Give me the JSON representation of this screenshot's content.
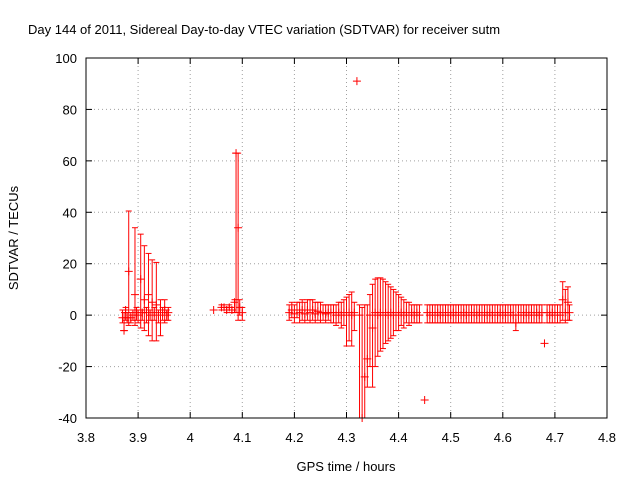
{
  "chart_data": {
    "type": "scatter",
    "title": "Day 144 of 2011, Sidereal Day-to-day VTEC variation (SDTVAR) for receiver sutm",
    "xlabel": "GPS time / hours",
    "ylabel": "SDTVAR / TECUs",
    "xlim": [
      3.8,
      4.8
    ],
    "ylim": [
      -40,
      100
    ],
    "xticks": [
      "3.8",
      "3.9",
      "4",
      "4.1",
      "4.2",
      "4.3",
      "4.4",
      "4.5",
      "4.6",
      "4.7",
      "4.8"
    ],
    "yticks": [
      "-40",
      "-20",
      "0",
      "20",
      "40",
      "60",
      "80",
      "100"
    ],
    "grid": true,
    "marker": "+",
    "series_color": "#ff0000",
    "series": [
      {
        "name": "SDTVAR",
        "points": [
          {
            "x": 3.87,
            "y": -1.0,
            "lo": -3.0,
            "hi": 2.0
          },
          {
            "x": 3.873,
            "y": -6.0,
            "lo": -6.0,
            "hi": 1.0
          },
          {
            "x": 3.876,
            "y": 2.0,
            "lo": -2.0,
            "hi": 3.0
          },
          {
            "x": 3.879,
            "y": -1.0,
            "lo": -3.0,
            "hi": 1.0
          },
          {
            "x": 3.882,
            "y": 17.0,
            "lo": -4.0,
            "hi": 40.5
          },
          {
            "x": 3.886,
            "y": -1.0,
            "lo": -3.0,
            "hi": 1.0
          },
          {
            "x": 3.89,
            "y": 0.0,
            "lo": -2.0,
            "hi": 2.0
          },
          {
            "x": 3.894,
            "y": 8.0,
            "lo": -4.0,
            "hi": 34.0
          },
          {
            "x": 3.897,
            "y": 1.0,
            "lo": -2.0,
            "hi": 3.0
          },
          {
            "x": 3.9,
            "y": 0.0,
            "lo": -3.0,
            "hi": 2.0
          },
          {
            "x": 3.905,
            "y": 14.0,
            "lo": -5.0,
            "hi": 31.5
          },
          {
            "x": 3.908,
            "y": 1.0,
            "lo": -2.0,
            "hi": 2.0
          },
          {
            "x": 3.912,
            "y": 6.0,
            "lo": -6.0,
            "hi": 27.0
          },
          {
            "x": 3.916,
            "y": 1.0,
            "lo": -3.0,
            "hi": 3.0
          },
          {
            "x": 3.92,
            "y": 8.0,
            "lo": -8.0,
            "hi": 24.0
          },
          {
            "x": 3.923,
            "y": 0.0,
            "lo": -2.0,
            "hi": 2.0
          },
          {
            "x": 3.927,
            "y": 5.0,
            "lo": -10.0,
            "hi": 21.5
          },
          {
            "x": 3.931,
            "y": 1.0,
            "lo": -2.0,
            "hi": 3.0
          },
          {
            "x": 3.935,
            "y": 4.0,
            "lo": -10.0,
            "hi": 20.5
          },
          {
            "x": 3.939,
            "y": 0.0,
            "lo": -3.0,
            "hi": 2.0
          },
          {
            "x": 3.943,
            "y": 2.0,
            "lo": -8.0,
            "hi": 6.0
          },
          {
            "x": 3.947,
            "y": 1.0,
            "lo": -2.0,
            "hi": 3.0
          },
          {
            "x": 3.951,
            "y": 2.0,
            "lo": -3.0,
            "hi": 6.0
          },
          {
            "x": 3.955,
            "y": 0.0,
            "lo": -2.0,
            "hi": 2.0
          },
          {
            "x": 3.958,
            "y": 1.0,
            "lo": -2.0,
            "hi": 3.0
          },
          {
            "x": 4.045,
            "y": 2.0,
            "lo": 2.0,
            "hi": 2.0
          },
          {
            "x": 4.06,
            "y": 3.0,
            "lo": 2.0,
            "hi": 4.0
          },
          {
            "x": 4.065,
            "y": 3.0,
            "lo": 2.0,
            "hi": 4.0
          },
          {
            "x": 4.07,
            "y": 2.0,
            "lo": 1.0,
            "hi": 3.0
          },
          {
            "x": 4.075,
            "y": 3.0,
            "lo": 2.0,
            "hi": 4.0
          },
          {
            "x": 4.08,
            "y": 2.0,
            "lo": 1.0,
            "hi": 3.0
          },
          {
            "x": 4.085,
            "y": 5.0,
            "lo": 1.0,
            "hi": 6.0
          },
          {
            "x": 4.088,
            "y": 63.0,
            "lo": 1.0,
            "hi": 63.0
          },
          {
            "x": 4.092,
            "y": 34.0,
            "lo": -2.0,
            "hi": 63.0
          },
          {
            "x": 4.095,
            "y": 3.0,
            "lo": 0.0,
            "hi": 6.0
          },
          {
            "x": 4.1,
            "y": 1.0,
            "lo": -2.0,
            "hi": 3.0
          },
          {
            "x": 4.19,
            "y": 1.0,
            "lo": -2.0,
            "hi": 4.0
          },
          {
            "x": 4.195,
            "y": 2.0,
            "lo": -1.0,
            "hi": 5.0
          },
          {
            "x": 4.2,
            "y": 0.5,
            "lo": -3.0,
            "hi": 4.0
          },
          {
            "x": 4.205,
            "y": 2.0,
            "lo": -1.0,
            "hi": 5.0
          },
          {
            "x": 4.21,
            "y": 1.0,
            "lo": -3.0,
            "hi": 5.0
          },
          {
            "x": 4.215,
            "y": 2.0,
            "lo": -2.0,
            "hi": 6.0
          },
          {
            "x": 4.22,
            "y": 0.5,
            "lo": -3.0,
            "hi": 5.0
          },
          {
            "x": 4.225,
            "y": 2.0,
            "lo": -2.0,
            "hi": 6.0
          },
          {
            "x": 4.23,
            "y": 1.0,
            "lo": -3.0,
            "hi": 6.0
          },
          {
            "x": 4.235,
            "y": 2.0,
            "lo": -2.0,
            "hi": 6.0
          },
          {
            "x": 4.24,
            "y": 0.5,
            "lo": -3.0,
            "hi": 5.0
          },
          {
            "x": 4.245,
            "y": 1.5,
            "lo": -2.0,
            "hi": 5.0
          },
          {
            "x": 4.25,
            "y": 1.0,
            "lo": -3.0,
            "hi": 5.0
          },
          {
            "x": 4.255,
            "y": 1.0,
            "lo": -2.0,
            "hi": 4.0
          },
          {
            "x": 4.26,
            "y": 0.5,
            "lo": -3.0,
            "hi": 4.0
          },
          {
            "x": 4.265,
            "y": 1.0,
            "lo": -2.0,
            "hi": 4.0
          },
          {
            "x": 4.27,
            "y": 1.0,
            "lo": -3.0,
            "hi": 4.0
          },
          {
            "x": 4.275,
            "y": 1.0,
            "lo": -3.0,
            "hi": 4.0
          },
          {
            "x": 4.28,
            "y": 0.0,
            "lo": -4.0,
            "hi": 4.0
          },
          {
            "x": 4.285,
            "y": 1.0,
            "lo": -3.0,
            "hi": 5.0
          },
          {
            "x": 4.29,
            "y": 0.0,
            "lo": -5.0,
            "hi": 5.0
          },
          {
            "x": 4.295,
            "y": 1.0,
            "lo": -4.0,
            "hi": 6.0
          },
          {
            "x": 4.3,
            "y": 0.0,
            "lo": -12.0,
            "hi": 7.0
          },
          {
            "x": 4.305,
            "y": 1.0,
            "lo": -10.0,
            "hi": 8.0
          },
          {
            "x": 4.31,
            "y": 0.0,
            "lo": -12.0,
            "hi": 9.0
          },
          {
            "x": 4.315,
            "y": 1.0,
            "lo": -6.0,
            "hi": 5.0
          },
          {
            "x": 4.32,
            "y": 91.0,
            "lo": 91.0,
            "hi": 91.0
          },
          {
            "x": 4.325,
            "y": 0.0,
            "lo": -40.0,
            "hi": 4.0
          },
          {
            "x": 4.33,
            "y": -40.0,
            "lo": -40.0,
            "hi": 3.0
          },
          {
            "x": 4.335,
            "y": -24.0,
            "lo": -40.0,
            "hi": 4.0
          },
          {
            "x": 4.34,
            "y": -17.0,
            "lo": -28.0,
            "hi": 4.0
          },
          {
            "x": 4.345,
            "y": 0.0,
            "lo": -20.0,
            "hi": 8.0
          },
          {
            "x": 4.35,
            "y": -5.0,
            "lo": -28.0,
            "hi": 12.0
          },
          {
            "x": 4.355,
            "y": 1.0,
            "lo": -20.0,
            "hi": 14.0
          },
          {
            "x": 4.36,
            "y": 0.0,
            "lo": -16.0,
            "hi": 14.5
          },
          {
            "x": 4.365,
            "y": 1.0,
            "lo": -14.0,
            "hi": 14.5
          },
          {
            "x": 4.37,
            "y": 0.0,
            "lo": -13.0,
            "hi": 14.0
          },
          {
            "x": 4.375,
            "y": 1.0,
            "lo": -11.0,
            "hi": 13.0
          },
          {
            "x": 4.38,
            "y": 0.0,
            "lo": -10.0,
            "hi": 12.0
          },
          {
            "x": 4.385,
            "y": 1.0,
            "lo": -9.0,
            "hi": 11.0
          },
          {
            "x": 4.39,
            "y": 0.0,
            "lo": -8.0,
            "hi": 10.0
          },
          {
            "x": 4.395,
            "y": 1.0,
            "lo": -6.0,
            "hi": 9.0
          },
          {
            "x": 4.4,
            "y": 0.0,
            "lo": -6.0,
            "hi": 8.0
          },
          {
            "x": 4.405,
            "y": 1.0,
            "lo": -4.0,
            "hi": 7.0
          },
          {
            "x": 4.41,
            "y": 0.0,
            "lo": -5.0,
            "hi": 6.0
          },
          {
            "x": 4.415,
            "y": 1.0,
            "lo": -3.0,
            "hi": 5.0
          },
          {
            "x": 4.42,
            "y": 0.0,
            "lo": -4.0,
            "hi": 5.0
          },
          {
            "x": 4.425,
            "y": 1.0,
            "lo": -3.0,
            "hi": 4.0
          },
          {
            "x": 4.43,
            "y": 0.0,
            "lo": -3.0,
            "hi": 4.0
          },
          {
            "x": 4.435,
            "y": 1.0,
            "lo": -3.0,
            "hi": 4.0
          },
          {
            "x": 4.44,
            "y": 0.0,
            "lo": -3.0,
            "hi": 4.0
          },
          {
            "x": 4.45,
            "y": -33.0,
            "lo": -33.0,
            "hi": -33.0
          },
          {
            "x": 4.455,
            "y": 1.0,
            "lo": -3.0,
            "hi": 4.0
          },
          {
            "x": 4.46,
            "y": 0.0,
            "lo": -3.0,
            "hi": 4.0
          },
          {
            "x": 4.465,
            "y": 1.0,
            "lo": -3.0,
            "hi": 4.0
          },
          {
            "x": 4.47,
            "y": 0.0,
            "lo": -3.0,
            "hi": 4.0
          },
          {
            "x": 4.475,
            "y": 1.0,
            "lo": -3.0,
            "hi": 4.0
          },
          {
            "x": 4.48,
            "y": 0.0,
            "lo": -3.0,
            "hi": 4.0
          },
          {
            "x": 4.485,
            "y": 1.0,
            "lo": -3.0,
            "hi": 4.0
          },
          {
            "x": 4.49,
            "y": 0.0,
            "lo": -3.0,
            "hi": 4.0
          },
          {
            "x": 4.495,
            "y": 1.0,
            "lo": -3.0,
            "hi": 4.0
          },
          {
            "x": 4.5,
            "y": 0.0,
            "lo": -3.0,
            "hi": 4.0
          },
          {
            "x": 4.505,
            "y": 1.0,
            "lo": -3.0,
            "hi": 4.0
          },
          {
            "x": 4.51,
            "y": 0.0,
            "lo": -3.0,
            "hi": 4.0
          },
          {
            "x": 4.515,
            "y": 1.0,
            "lo": -3.0,
            "hi": 4.0
          },
          {
            "x": 4.52,
            "y": 0.0,
            "lo": -3.0,
            "hi": 4.0
          },
          {
            "x": 4.525,
            "y": 1.0,
            "lo": -3.0,
            "hi": 4.0
          },
          {
            "x": 4.53,
            "y": 0.0,
            "lo": -3.0,
            "hi": 4.0
          },
          {
            "x": 4.535,
            "y": 1.0,
            "lo": -3.0,
            "hi": 4.0
          },
          {
            "x": 4.54,
            "y": 0.0,
            "lo": -3.0,
            "hi": 4.0
          },
          {
            "x": 4.545,
            "y": 1.0,
            "lo": -3.0,
            "hi": 4.0
          },
          {
            "x": 4.55,
            "y": 0.0,
            "lo": -3.0,
            "hi": 4.0
          },
          {
            "x": 4.555,
            "y": 1.0,
            "lo": -3.0,
            "hi": 4.0
          },
          {
            "x": 4.56,
            "y": 0.0,
            "lo": -3.0,
            "hi": 4.0
          },
          {
            "x": 4.565,
            "y": 1.0,
            "lo": -3.0,
            "hi": 4.0
          },
          {
            "x": 4.57,
            "y": 0.0,
            "lo": -3.0,
            "hi": 4.0
          },
          {
            "x": 4.575,
            "y": 1.0,
            "lo": -3.0,
            "hi": 4.0
          },
          {
            "x": 4.58,
            "y": 0.0,
            "lo": -3.0,
            "hi": 4.0
          },
          {
            "x": 4.585,
            "y": 1.0,
            "lo": -3.0,
            "hi": 4.0
          },
          {
            "x": 4.59,
            "y": 0.0,
            "lo": -3.0,
            "hi": 4.0
          },
          {
            "x": 4.595,
            "y": 1.0,
            "lo": -3.0,
            "hi": 4.0
          },
          {
            "x": 4.6,
            "y": 0.0,
            "lo": -3.0,
            "hi": 4.0
          },
          {
            "x": 4.605,
            "y": 1.0,
            "lo": -3.0,
            "hi": 4.0
          },
          {
            "x": 4.61,
            "y": 0.0,
            "lo": -3.0,
            "hi": 4.0
          },
          {
            "x": 4.615,
            "y": 1.0,
            "lo": -3.0,
            "hi": 4.0
          },
          {
            "x": 4.62,
            "y": 0.0,
            "lo": -3.0,
            "hi": 4.0
          },
          {
            "x": 4.625,
            "y": -3.0,
            "lo": -6.0,
            "hi": 4.0
          },
          {
            "x": 4.63,
            "y": 0.0,
            "lo": -3.0,
            "hi": 4.0
          },
          {
            "x": 4.635,
            "y": 1.0,
            "lo": -3.0,
            "hi": 4.0
          },
          {
            "x": 4.64,
            "y": 0.0,
            "lo": -3.0,
            "hi": 4.0
          },
          {
            "x": 4.645,
            "y": 1.0,
            "lo": -3.0,
            "hi": 4.0
          },
          {
            "x": 4.65,
            "y": 0.0,
            "lo": -3.0,
            "hi": 4.0
          },
          {
            "x": 4.655,
            "y": 1.0,
            "lo": -3.0,
            "hi": 4.0
          },
          {
            "x": 4.66,
            "y": 0.0,
            "lo": -3.0,
            "hi": 4.0
          },
          {
            "x": 4.665,
            "y": 1.0,
            "lo": -3.0,
            "hi": 4.0
          },
          {
            "x": 4.67,
            "y": 0.0,
            "lo": -3.0,
            "hi": 4.0
          },
          {
            "x": 4.675,
            "y": 1.0,
            "lo": -3.0,
            "hi": 4.0
          },
          {
            "x": 4.68,
            "y": -11.0,
            "lo": -11.0,
            "hi": -11.0
          },
          {
            "x": 4.685,
            "y": 1.0,
            "lo": -3.0,
            "hi": 4.0
          },
          {
            "x": 4.69,
            "y": 0.0,
            "lo": -3.0,
            "hi": 4.0
          },
          {
            "x": 4.695,
            "y": 1.0,
            "lo": -3.0,
            "hi": 4.0
          },
          {
            "x": 4.7,
            "y": 0.0,
            "lo": -3.0,
            "hi": 4.0
          },
          {
            "x": 4.705,
            "y": 1.0,
            "lo": -3.0,
            "hi": 4.0
          },
          {
            "x": 4.71,
            "y": 0.0,
            "lo": -3.0,
            "hi": 4.0
          },
          {
            "x": 4.715,
            "y": 6.0,
            "lo": -2.0,
            "hi": 13.0
          },
          {
            "x": 4.72,
            "y": 1.0,
            "lo": -3.0,
            "hi": 10.0
          },
          {
            "x": 4.725,
            "y": 5.0,
            "lo": -2.0,
            "hi": 11.0
          },
          {
            "x": 4.728,
            "y": 1.0,
            "lo": -2.0,
            "hi": 4.0
          }
        ]
      }
    ]
  }
}
